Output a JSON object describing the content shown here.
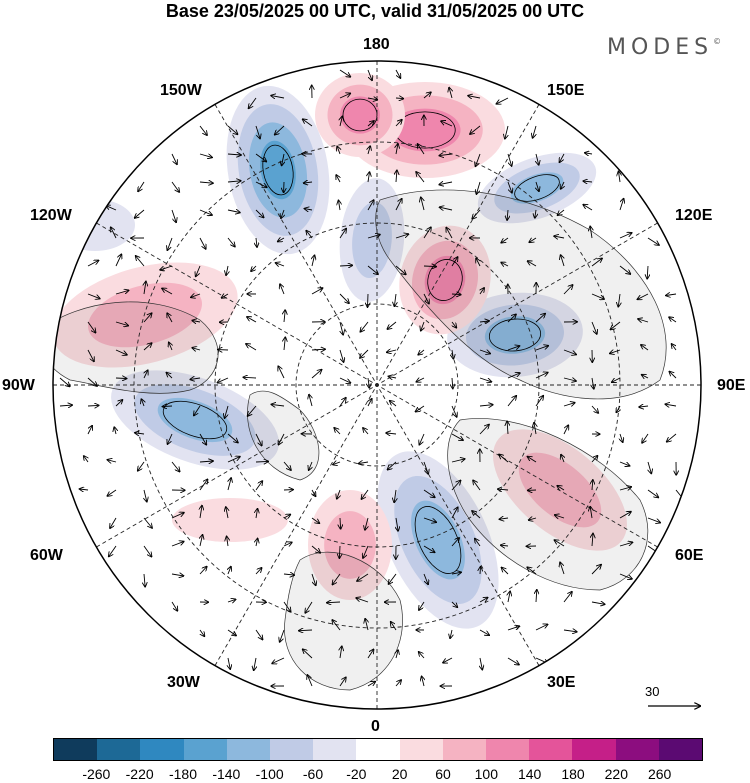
{
  "title": "Base 23/05/2025 00 UTC, valid 31/05/2025 00 UTC",
  "logo": "MODES",
  "logo_mark": "©",
  "labels": {
    "lon_180": "180",
    "lon_150w": "150W",
    "lon_150e": "150E",
    "lon_120w": "120W",
    "lon_120e": "120E",
    "lon_90w": "90W",
    "lon_90e": "90E",
    "lon_60w": "60W",
    "lon_60e": "60E",
    "lon_30w": "30W",
    "lon_30e": "30E",
    "lon_0": "0"
  },
  "reference_vector": "30",
  "colorbar": {
    "colors": [
      "#0f3b5c",
      "#1d6996",
      "#2f88c0",
      "#5aa2d0",
      "#8db8dd",
      "#c0cbe6",
      "#e2e3f1",
      "#ffffff",
      "#fadce0",
      "#f5b3c2",
      "#ef86ad",
      "#e4549a",
      "#c51f88",
      "#8c0d7f",
      "#5b0a72"
    ],
    "ticks": [
      "-260",
      "-220",
      "-180",
      "-140",
      "-100",
      "-60",
      "-20",
      "20",
      "60",
      "100",
      "140",
      "180",
      "220",
      "260"
    ]
  },
  "anomalies": [
    {
      "sign": "neg",
      "level": 4
    },
    {
      "sign": "neg",
      "level": 2
    },
    {
      "sign": "neg",
      "level": 3
    },
    {
      "sign": "neg",
      "level": 3
    },
    {
      "sign": "neg",
      "level": 3
    },
    {
      "sign": "neg",
      "level": 3
    },
    {
      "sign": "neg",
      "level": 1
    },
    {
      "sign": "pos",
      "level": 3
    },
    {
      "sign": "pos",
      "level": 3
    },
    {
      "sign": "pos",
      "level": 2
    },
    {
      "sign": "pos",
      "level": 2
    },
    {
      "sign": "pos",
      "level": 2
    },
    {
      "sign": "pos",
      "level": 3
    },
    {
      "sign": "pos",
      "level": 1
    }
  ]
}
